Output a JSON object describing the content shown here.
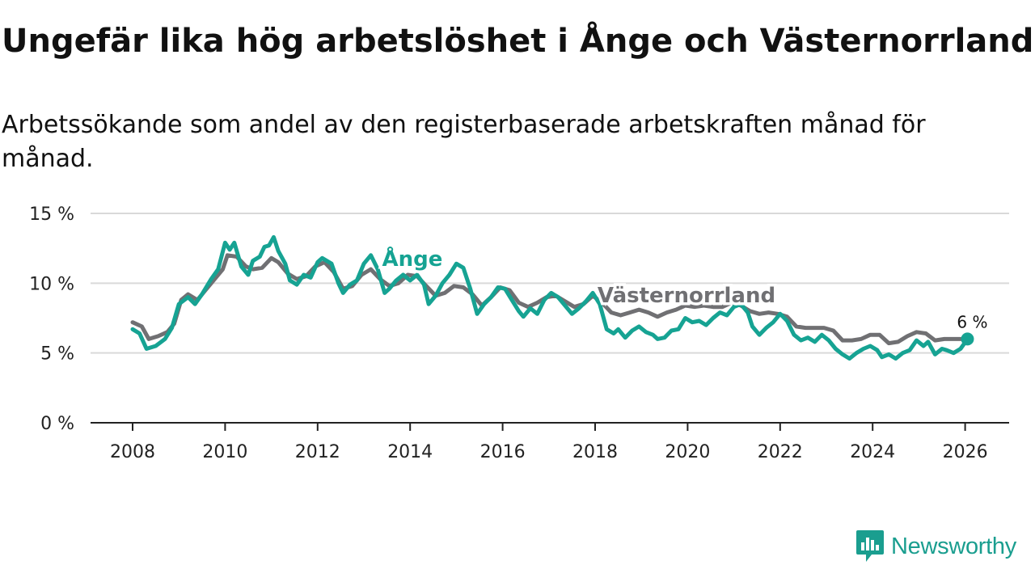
{
  "title": "Ungefär lika hög arbetslöshet i Ånge och Västernorrland",
  "subtitle": "Arbetssökande som andel av den registerbaserade arbetskraften månad för månad.",
  "brand": {
    "name": "Newsworthy",
    "icon": "newsworthy-chart-bubble-icon"
  },
  "colors": {
    "ange": "#16a393",
    "vasternorrland": "#707073",
    "grid": "#d9d9d9",
    "axis": "#222222",
    "brand": "#1a9e8f"
  },
  "chart_data": {
    "type": "line",
    "title": "Ungefär lika hög arbetslöshet i Ånge och Västernorrland",
    "xlabel": "",
    "ylabel": "",
    "xlim": [
      2007.5,
      2027.0
    ],
    "ylim": [
      0,
      15
    ],
    "x_ticks": [
      2008,
      2010,
      2012,
      2014,
      2016,
      2018,
      2020,
      2022,
      2024,
      2026
    ],
    "x_tick_labels": [
      "2008",
      "2010",
      "2012",
      "2014",
      "2016",
      "2018",
      "2020",
      "2022",
      "2024",
      "2026"
    ],
    "y_ticks": [
      0,
      5,
      10,
      15
    ],
    "y_tick_labels": [
      "0 %",
      "5 %",
      "10 %",
      "15 %"
    ],
    "grid": true,
    "legend": "inline labels",
    "end_label": "6 %",
    "series": [
      {
        "name": "Ånge",
        "label": "Ånge",
        "points": [
          [
            2008.0,
            6.7
          ],
          [
            2008.15,
            6.4
          ],
          [
            2008.3,
            5.3
          ],
          [
            2008.5,
            5.5
          ],
          [
            2008.7,
            6.0
          ],
          [
            2008.85,
            6.8
          ],
          [
            2009.0,
            8.5
          ],
          [
            2009.2,
            9.0
          ],
          [
            2009.35,
            8.5
          ],
          [
            2009.5,
            9.2
          ],
          [
            2009.7,
            10.3
          ],
          [
            2009.85,
            11.0
          ],
          [
            2010.0,
            12.9
          ],
          [
            2010.1,
            12.4
          ],
          [
            2010.2,
            12.9
          ],
          [
            2010.35,
            11.2
          ],
          [
            2010.5,
            10.6
          ],
          [
            2010.6,
            11.6
          ],
          [
            2010.75,
            11.9
          ],
          [
            2010.85,
            12.6
          ],
          [
            2010.95,
            12.7
          ],
          [
            2011.05,
            13.3
          ],
          [
            2011.15,
            12.3
          ],
          [
            2011.3,
            11.4
          ],
          [
            2011.4,
            10.2
          ],
          [
            2011.55,
            9.9
          ],
          [
            2011.7,
            10.6
          ],
          [
            2011.85,
            10.4
          ],
          [
            2012.0,
            11.5
          ],
          [
            2012.1,
            11.8
          ],
          [
            2012.3,
            11.4
          ],
          [
            2012.45,
            10.0
          ],
          [
            2012.55,
            9.3
          ],
          [
            2012.7,
            9.9
          ],
          [
            2012.85,
            10.2
          ],
          [
            2013.0,
            11.4
          ],
          [
            2013.15,
            12.0
          ],
          [
            2013.3,
            11.0
          ],
          [
            2013.45,
            9.3
          ],
          [
            2013.55,
            9.6
          ],
          [
            2013.7,
            10.2
          ],
          [
            2013.85,
            10.6
          ],
          [
            2014.0,
            10.2
          ],
          [
            2014.15,
            10.6
          ],
          [
            2014.3,
            9.9
          ],
          [
            2014.4,
            8.5
          ],
          [
            2014.55,
            9.1
          ],
          [
            2014.7,
            10.0
          ],
          [
            2014.85,
            10.6
          ],
          [
            2015.0,
            11.4
          ],
          [
            2015.15,
            11.1
          ],
          [
            2015.3,
            9.6
          ],
          [
            2015.45,
            7.8
          ],
          [
            2015.6,
            8.5
          ],
          [
            2015.75,
            9.0
          ],
          [
            2015.9,
            9.7
          ],
          [
            2016.05,
            9.6
          ],
          [
            2016.2,
            8.8
          ],
          [
            2016.35,
            8.0
          ],
          [
            2016.45,
            7.6
          ],
          [
            2016.6,
            8.2
          ],
          [
            2016.75,
            7.8
          ],
          [
            2016.9,
            8.8
          ],
          [
            2017.05,
            9.3
          ],
          [
            2017.2,
            9.0
          ],
          [
            2017.35,
            8.4
          ],
          [
            2017.5,
            7.8
          ],
          [
            2017.65,
            8.2
          ],
          [
            2017.8,
            8.7
          ],
          [
            2017.95,
            9.3
          ],
          [
            2018.1,
            8.5
          ],
          [
            2018.25,
            6.7
          ],
          [
            2018.4,
            6.4
          ],
          [
            2018.5,
            6.7
          ],
          [
            2018.65,
            6.1
          ],
          [
            2018.8,
            6.6
          ],
          [
            2018.95,
            6.9
          ],
          [
            2019.1,
            6.5
          ],
          [
            2019.25,
            6.3
          ],
          [
            2019.35,
            6.0
          ],
          [
            2019.5,
            6.1
          ],
          [
            2019.65,
            6.6
          ],
          [
            2019.8,
            6.7
          ],
          [
            2019.95,
            7.5
          ],
          [
            2020.1,
            7.2
          ],
          [
            2020.25,
            7.3
          ],
          [
            2020.4,
            7.0
          ],
          [
            2020.55,
            7.5
          ],
          [
            2020.7,
            7.9
          ],
          [
            2020.85,
            7.7
          ],
          [
            2021.0,
            8.3
          ],
          [
            2021.15,
            8.5
          ],
          [
            2021.3,
            7.9
          ],
          [
            2021.4,
            6.9
          ],
          [
            2021.55,
            6.3
          ],
          [
            2021.7,
            6.8
          ],
          [
            2021.85,
            7.2
          ],
          [
            2022.0,
            7.8
          ],
          [
            2022.15,
            7.3
          ],
          [
            2022.3,
            6.3
          ],
          [
            2022.45,
            5.9
          ],
          [
            2022.6,
            6.1
          ],
          [
            2022.75,
            5.8
          ],
          [
            2022.9,
            6.3
          ],
          [
            2023.05,
            5.9
          ],
          [
            2023.2,
            5.3
          ],
          [
            2023.35,
            4.9
          ],
          [
            2023.5,
            4.6
          ],
          [
            2023.65,
            5.0
          ],
          [
            2023.8,
            5.3
          ],
          [
            2023.95,
            5.5
          ],
          [
            2024.1,
            5.2
          ],
          [
            2024.2,
            4.7
          ],
          [
            2024.35,
            4.9
          ],
          [
            2024.5,
            4.6
          ],
          [
            2024.65,
            5.0
          ],
          [
            2024.8,
            5.2
          ],
          [
            2024.95,
            5.9
          ],
          [
            2025.1,
            5.5
          ],
          [
            2025.2,
            5.8
          ],
          [
            2025.35,
            4.9
          ],
          [
            2025.5,
            5.3
          ],
          [
            2025.6,
            5.2
          ],
          [
            2025.75,
            5.0
          ],
          [
            2025.9,
            5.3
          ],
          [
            2026.05,
            6.0
          ]
        ]
      },
      {
        "name": "Västernorrland",
        "label": "Västernorrland",
        "points": [
          [
            2008.0,
            7.2
          ],
          [
            2008.2,
            6.9
          ],
          [
            2008.35,
            6.0
          ],
          [
            2008.55,
            6.2
          ],
          [
            2008.75,
            6.5
          ],
          [
            2008.9,
            7.1
          ],
          [
            2009.05,
            8.8
          ],
          [
            2009.2,
            9.2
          ],
          [
            2009.4,
            8.8
          ],
          [
            2009.55,
            9.4
          ],
          [
            2009.75,
            10.2
          ],
          [
            2009.95,
            11.0
          ],
          [
            2010.05,
            12.0
          ],
          [
            2010.25,
            11.9
          ],
          [
            2010.45,
            11.2
          ],
          [
            2010.6,
            11.0
          ],
          [
            2010.8,
            11.1
          ],
          [
            2011.0,
            11.8
          ],
          [
            2011.15,
            11.5
          ],
          [
            2011.35,
            10.7
          ],
          [
            2011.55,
            10.3
          ],
          [
            2011.75,
            10.5
          ],
          [
            2011.95,
            11.2
          ],
          [
            2012.15,
            11.5
          ],
          [
            2012.35,
            10.8
          ],
          [
            2012.55,
            9.6
          ],
          [
            2012.75,
            9.8
          ],
          [
            2012.95,
            10.6
          ],
          [
            2013.15,
            11.0
          ],
          [
            2013.35,
            10.3
          ],
          [
            2013.55,
            9.8
          ],
          [
            2013.75,
            10.0
          ],
          [
            2013.95,
            10.6
          ],
          [
            2014.15,
            10.5
          ],
          [
            2014.35,
            9.8
          ],
          [
            2014.55,
            9.1
          ],
          [
            2014.75,
            9.3
          ],
          [
            2014.95,
            9.8
          ],
          [
            2015.15,
            9.7
          ],
          [
            2015.35,
            9.2
          ],
          [
            2015.55,
            8.4
          ],
          [
            2015.75,
            9.0
          ],
          [
            2015.95,
            9.7
          ],
          [
            2016.15,
            9.5
          ],
          [
            2016.35,
            8.6
          ],
          [
            2016.55,
            8.3
          ],
          [
            2016.75,
            8.6
          ],
          [
            2016.95,
            9.0
          ],
          [
            2017.15,
            9.1
          ],
          [
            2017.35,
            8.7
          ],
          [
            2017.55,
            8.3
          ],
          [
            2017.75,
            8.5
          ],
          [
            2017.95,
            9.1
          ],
          [
            2018.15,
            8.6
          ],
          [
            2018.35,
            7.9
          ],
          [
            2018.55,
            7.7
          ],
          [
            2018.75,
            7.9
          ],
          [
            2018.95,
            8.1
          ],
          [
            2019.15,
            7.9
          ],
          [
            2019.35,
            7.6
          ],
          [
            2019.55,
            7.9
          ],
          [
            2019.75,
            8.1
          ],
          [
            2019.95,
            8.4
          ],
          [
            2020.15,
            8.3
          ],
          [
            2020.35,
            8.4
          ],
          [
            2020.55,
            8.3
          ],
          [
            2020.75,
            8.3
          ],
          [
            2020.95,
            8.6
          ],
          [
            2021.15,
            8.4
          ],
          [
            2021.35,
            8.0
          ],
          [
            2021.55,
            7.8
          ],
          [
            2021.75,
            7.9
          ],
          [
            2021.95,
            7.8
          ],
          [
            2022.15,
            7.6
          ],
          [
            2022.35,
            6.9
          ],
          [
            2022.55,
            6.8
          ],
          [
            2022.75,
            6.8
          ],
          [
            2022.95,
            6.8
          ],
          [
            2023.15,
            6.6
          ],
          [
            2023.35,
            5.9
          ],
          [
            2023.55,
            5.9
          ],
          [
            2023.75,
            6.0
          ],
          [
            2023.95,
            6.3
          ],
          [
            2024.15,
            6.3
          ],
          [
            2024.35,
            5.7
          ],
          [
            2024.55,
            5.8
          ],
          [
            2024.75,
            6.2
          ],
          [
            2024.95,
            6.5
          ],
          [
            2025.15,
            6.4
          ],
          [
            2025.35,
            5.9
          ],
          [
            2025.55,
            6.0
          ],
          [
            2025.75,
            6.0
          ],
          [
            2025.95,
            6.0
          ],
          [
            2026.05,
            6.0
          ]
        ]
      }
    ]
  }
}
